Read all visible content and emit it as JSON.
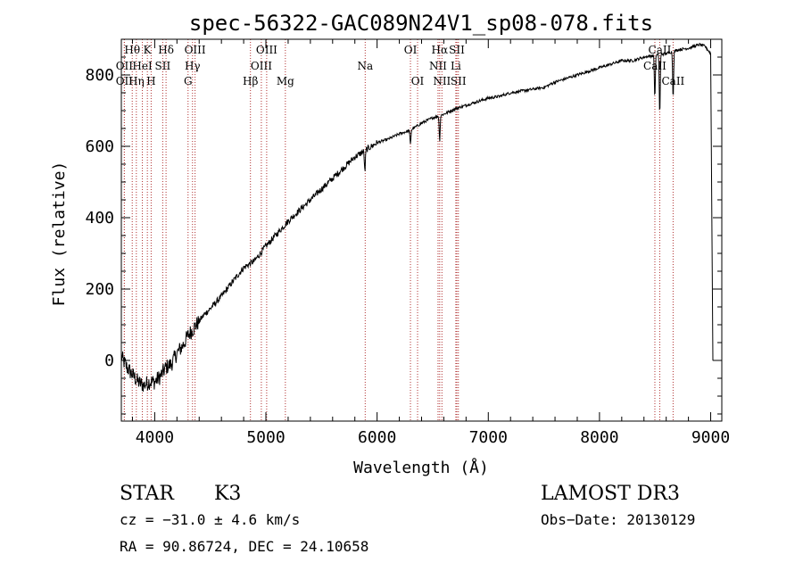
{
  "chart_data": {
    "type": "line",
    "title": "spec-56322-GAC089N24V1_sp08-078.fits",
    "xlabel": "Wavelength (Å)",
    "ylabel": "Flux (relative)",
    "xlim": [
      3700,
      9100
    ],
    "ylim": [
      -170,
      900
    ],
    "xticks": [
      4000,
      5000,
      6000,
      7000,
      8000,
      9000
    ],
    "xtick_labels": [
      "4000",
      "5000",
      "6000",
      "7000",
      "8000",
      "9000"
    ],
    "yticks": [
      0,
      200,
      400,
      600,
      800
    ],
    "ytick_labels": [
      "0",
      "200",
      "400",
      "600",
      "800"
    ],
    "series": [
      {
        "name": "spectrum",
        "color": "#000000",
        "x": [
          3700,
          3750,
          3800,
          3850,
          3900,
          3950,
          4000,
          4050,
          4100,
          4150,
          4200,
          4250,
          4300,
          4350,
          4400,
          4450,
          4500,
          4600,
          4700,
          4800,
          4900,
          5000,
          5100,
          5200,
          5300,
          5400,
          5500,
          5600,
          5700,
          5800,
          5900,
          6000,
          6100,
          6200,
          6300,
          6400,
          6500,
          6600,
          6700,
          6800,
          6900,
          7000,
          7100,
          7200,
          7300,
          7400,
          7500,
          7600,
          7700,
          7800,
          7900,
          8000,
          8100,
          8200,
          8300,
          8400,
          8500,
          8600,
          8700,
          8800,
          8900,
          8950,
          9000,
          9020
        ],
        "y": [
          10,
          -20,
          -40,
          -60,
          -70,
          -60,
          -60,
          -45,
          -20,
          -10,
          20,
          40,
          70,
          90,
          110,
          130,
          145,
          180,
          220,
          260,
          280,
          320,
          355,
          390,
          420,
          450,
          480,
          510,
          540,
          570,
          590,
          610,
          620,
          635,
          645,
          665,
          680,
          690,
          705,
          715,
          725,
          735,
          740,
          750,
          755,
          760,
          765,
          780,
          790,
          800,
          810,
          820,
          830,
          840,
          840,
          850,
          855,
          860,
          870,
          875,
          885,
          880,
          860,
          0
        ],
        "dips": [
          {
            "x": 5890,
            "depth": 60
          },
          {
            "x": 6300,
            "depth": 40
          },
          {
            "x": 6563,
            "depth": 70
          },
          {
            "x": 8498,
            "depth": 120
          },
          {
            "x": 8542,
            "depth": 170
          },
          {
            "x": 8662,
            "depth": 130
          }
        ]
      }
    ],
    "lines": [
      {
        "x": 3798,
        "label": "Hθ",
        "row": 0
      },
      {
        "x": 3727,
        "label": "OII",
        "row": 1
      },
      {
        "x": 3727,
        "label": "OII",
        "row": 2
      },
      {
        "x": 3835,
        "label": "Hη",
        "row": 2
      },
      {
        "x": 3889,
        "label": "HeI",
        "row": 1
      },
      {
        "x": 3934,
        "label": "K",
        "row": 0
      },
      {
        "x": 3968,
        "label": "H",
        "row": 2
      },
      {
        "x": 4072,
        "label": "SII",
        "row": 1
      },
      {
        "x": 4102,
        "label": "Hδ",
        "row": 0
      },
      {
        "x": 4300,
        "label": "G",
        "row": 2
      },
      {
        "x": 4340,
        "label": "Hγ",
        "row": 1
      },
      {
        "x": 4363,
        "label": "OIII",
        "row": 0
      },
      {
        "x": 4861,
        "label": "Hβ",
        "row": 2
      },
      {
        "x": 4959,
        "label": "OIII",
        "row": 1
      },
      {
        "x": 5007,
        "label": "OIII",
        "row": 0
      },
      {
        "x": 5175,
        "label": "Mg",
        "row": 2
      },
      {
        "x": 5893,
        "label": "Na",
        "row": 1
      },
      {
        "x": 6300,
        "label": "OI",
        "row": 0
      },
      {
        "x": 6364,
        "label": "OI",
        "row": 2
      },
      {
        "x": 6548,
        "label": "NII",
        "row": 1
      },
      {
        "x": 6563,
        "label": "Hα",
        "row": 0
      },
      {
        "x": 6583,
        "label": "NII",
        "row": 2
      },
      {
        "x": 6708,
        "label": "Li",
        "row": 1
      },
      {
        "x": 6717,
        "label": "SII",
        "row": 0
      },
      {
        "x": 6731,
        "label": "SII",
        "row": 2
      },
      {
        "x": 8498,
        "label": "CaII",
        "row": 1
      },
      {
        "x": 8542,
        "label": "CaII",
        "row": 0
      },
      {
        "x": 8662,
        "label": "CaII",
        "row": 2
      }
    ]
  },
  "info": {
    "class": "STAR",
    "subclass": "K3",
    "survey": "LAMOST DR3",
    "cz": "cz = −31.0 ± 4.6 km/s",
    "obs_date": "Obs−Date: 20130129",
    "radec": "RA =  90.86724, DEC =  24.10658"
  }
}
